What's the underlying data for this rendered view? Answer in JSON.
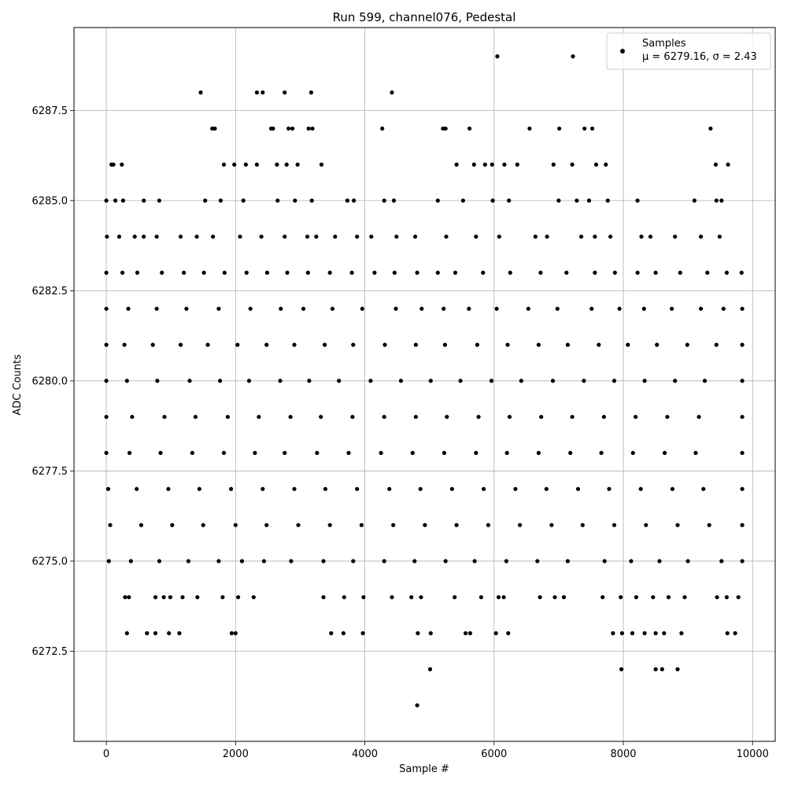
{
  "chart_data": {
    "type": "scatter",
    "title": "Run 599, channel076, Pedestal",
    "xlabel": "Sample #",
    "ylabel": "ADC Counts",
    "xlim": [
      -500,
      10350
    ],
    "ylim": [
      6270.0,
      6289.8
    ],
    "x_ticks": [
      0,
      2000,
      4000,
      6000,
      8000,
      10000
    ],
    "x_tick_labels": [
      "0",
      "2000",
      "4000",
      "6000",
      "8000",
      "10000"
    ],
    "y_ticks": [
      6272.5,
      6275.0,
      6277.5,
      6280.0,
      6282.5,
      6285.0,
      6287.5
    ],
    "y_tick_labels": [
      "6272.5",
      "6275.0",
      "6277.5",
      "6280.0",
      "6282.5",
      "6285.0",
      "6287.5"
    ],
    "grid": true,
    "legend": {
      "placement": "top-right",
      "label": "Samples",
      "stats": "μ = 6279.16, σ = 2.43"
    },
    "marker_color": "#000000",
    "series": [
      {
        "name": "Samples",
        "x": [
          1460,
          2330,
          2420,
          2760,
          3170,
          4420,
          6050,
          7220,
          1640,
          1680,
          2550,
          2580,
          2820,
          2880,
          3130,
          3190,
          4270,
          5210,
          5250,
          5620,
          6550,
          7010,
          7400,
          7520,
          9350,
          80,
          110,
          240,
          1820,
          1980,
          2160,
          2330,
          2640,
          2790,
          2960,
          3330,
          5420,
          5690,
          5860,
          5970,
          6160,
          6360,
          6920,
          7210,
          7580,
          7730,
          9430,
          9620,
          0,
          140,
          260,
          580,
          820,
          1530,
          1770,
          2120,
          2650,
          2920,
          3180,
          3730,
          3830,
          4300,
          4450,
          5130,
          5520,
          5980,
          6230,
          7000,
          7280,
          7470,
          7760,
          8220,
          9100,
          9440,
          9520,
          10,
          200,
          440,
          580,
          780,
          1150,
          1400,
          1650,
          2070,
          2400,
          2760,
          3110,
          3250,
          3540,
          3880,
          4100,
          4490,
          4780,
          5260,
          5720,
          6080,
          6640,
          6820,
          7350,
          7560,
          7800,
          8280,
          8420,
          8800,
          9200,
          9490,
          0,
          250,
          480,
          860,
          1200,
          1510,
          1830,
          2170,
          2490,
          2800,
          3120,
          3460,
          3800,
          4150,
          4460,
          4810,
          5130,
          5400,
          5830,
          6250,
          6720,
          7120,
          7560,
          7870,
          8220,
          8500,
          8880,
          9300,
          9600,
          9830,
          0,
          340,
          780,
          1240,
          1740,
          2230,
          2700,
          3050,
          3500,
          3960,
          4480,
          4880,
          5220,
          5610,
          6040,
          6530,
          6980,
          7510,
          7940,
          8320,
          8750,
          9200,
          9550,
          9840,
          0,
          280,
          720,
          1150,
          1570,
          2030,
          2480,
          2910,
          3380,
          3820,
          4310,
          4790,
          5240,
          5740,
          6210,
          6690,
          7140,
          7620,
          8070,
          8520,
          8990,
          9440,
          9840,
          0,
          320,
          790,
          1290,
          1760,
          2210,
          2690,
          3140,
          3600,
          4090,
          4560,
          5020,
          5480,
          5960,
          6420,
          6910,
          7390,
          7860,
          8330,
          8800,
          9260,
          9840,
          0,
          400,
          900,
          1380,
          1880,
          2360,
          2850,
          3320,
          3810,
          4300,
          4790,
          5270,
          5760,
          6240,
          6730,
          7210,
          7700,
          8190,
          8680,
          9170,
          9840,
          0,
          360,
          840,
          1330,
          1820,
          2300,
          2760,
          3260,
          3750,
          4250,
          4740,
          5230,
          5720,
          6200,
          6690,
          7180,
          7660,
          8150,
          8640,
          9120,
          9840,
          30,
          470,
          960,
          1440,
          1930,
          2420,
          2910,
          3390,
          3880,
          4380,
          4860,
          5350,
          5840,
          6330,
          6810,
          7300,
          7780,
          8270,
          8760,
          9240,
          9840,
          60,
          540,
          1020,
          1500,
          2000,
          2480,
          2970,
          3460,
          3950,
          4440,
          4930,
          5420,
          5910,
          6400,
          6890,
          7370,
          7860,
          8350,
          8840,
          9330,
          9840,
          40,
          380,
          820,
          1270,
          1740,
          2100,
          2440,
          2860,
          3360,
          3820,
          4300,
          4770,
          5250,
          5700,
          6190,
          6670,
          7140,
          7710,
          8120,
          8560,
          9000,
          9520,
          9840,
          290,
          350,
          760,
          890,
          990,
          1180,
          1410,
          1800,
          2040,
          2280,
          3360,
          3680,
          3980,
          4420,
          4720,
          4870,
          5390,
          5800,
          6070,
          6150,
          6710,
          6940,
          7080,
          7680,
          7960,
          8200,
          8460,
          8700,
          8950,
          9450,
          9600,
          9780,
          320,
          630,
          760,
          970,
          1130,
          1940,
          2000,
          3480,
          3670,
          3970,
          4820,
          5020,
          5560,
          5630,
          6030,
          6220,
          7840,
          7980,
          8140,
          8330,
          8500,
          8630,
          8900,
          9610,
          9730,
          5010,
          7970,
          8500,
          8600,
          8840,
          4810
        ],
        "y": [
          6288,
          6288,
          6288,
          6288,
          6288,
          6288,
          6289,
          6289,
          6287,
          6287,
          6287,
          6287,
          6287,
          6287,
          6287,
          6287,
          6287,
          6287,
          6287,
          6287,
          6287,
          6287,
          6287,
          6287,
          6287,
          6286,
          6286,
          6286,
          6286,
          6286,
          6286,
          6286,
          6286,
          6286,
          6286,
          6286,
          6286,
          6286,
          6286,
          6286,
          6286,
          6286,
          6286,
          6286,
          6286,
          6286,
          6286,
          6286,
          6285,
          6285,
          6285,
          6285,
          6285,
          6285,
          6285,
          6285,
          6285,
          6285,
          6285,
          6285,
          6285,
          6285,
          6285,
          6285,
          6285,
          6285,
          6285,
          6285,
          6285,
          6285,
          6285,
          6285,
          6285,
          6285,
          6285,
          6284,
          6284,
          6284,
          6284,
          6284,
          6284,
          6284,
          6284,
          6284,
          6284,
          6284,
          6284,
          6284,
          6284,
          6284,
          6284,
          6284,
          6284,
          6284,
          6284,
          6284,
          6284,
          6284,
          6284,
          6284,
          6284,
          6284,
          6284,
          6284,
          6284,
          6284,
          6283,
          6283,
          6283,
          6283,
          6283,
          6283,
          6283,
          6283,
          6283,
          6283,
          6283,
          6283,
          6283,
          6283,
          6283,
          6283,
          6283,
          6283,
          6283,
          6283,
          6283,
          6283,
          6283,
          6283,
          6283,
          6283,
          6283,
          6283,
          6283,
          6283,
          6282,
          6282,
          6282,
          6282,
          6282,
          6282,
          6282,
          6282,
          6282,
          6282,
          6282,
          6282,
          6282,
          6282,
          6282,
          6282,
          6282,
          6282,
          6282,
          6282,
          6282,
          6282,
          6282,
          6282,
          6281,
          6281,
          6281,
          6281,
          6281,
          6281,
          6281,
          6281,
          6281,
          6281,
          6281,
          6281,
          6281,
          6281,
          6281,
          6281,
          6281,
          6281,
          6281,
          6281,
          6281,
          6281,
          6281,
          6280,
          6280,
          6280,
          6280,
          6280,
          6280,
          6280,
          6280,
          6280,
          6280,
          6280,
          6280,
          6280,
          6280,
          6280,
          6280,
          6280,
          6280,
          6280,
          6280,
          6280,
          6280,
          6279,
          6279,
          6279,
          6279,
          6279,
          6279,
          6279,
          6279,
          6279,
          6279,
          6279,
          6279,
          6279,
          6279,
          6279,
          6279,
          6279,
          6279,
          6279,
          6279,
          6279,
          6278,
          6278,
          6278,
          6278,
          6278,
          6278,
          6278,
          6278,
          6278,
          6278,
          6278,
          6278,
          6278,
          6278,
          6278,
          6278,
          6278,
          6278,
          6278,
          6278,
          6278,
          6277,
          6277,
          6277,
          6277,
          6277,
          6277,
          6277,
          6277,
          6277,
          6277,
          6277,
          6277,
          6277,
          6277,
          6277,
          6277,
          6277,
          6277,
          6277,
          6277,
          6277,
          6276,
          6276,
          6276,
          6276,
          6276,
          6276,
          6276,
          6276,
          6276,
          6276,
          6276,
          6276,
          6276,
          6276,
          6276,
          6276,
          6276,
          6276,
          6276,
          6276,
          6276,
          6275,
          6275,
          6275,
          6275,
          6275,
          6275,
          6275,
          6275,
          6275,
          6275,
          6275,
          6275,
          6275,
          6275,
          6275,
          6275,
          6275,
          6275,
          6275,
          6275,
          6275,
          6275,
          6275,
          6274,
          6274,
          6274,
          6274,
          6274,
          6274,
          6274,
          6274,
          6274,
          6274,
          6274,
          6274,
          6274,
          6274,
          6274,
          6274,
          6274,
          6274,
          6274,
          6274,
          6274,
          6274,
          6274,
          6274,
          6274,
          6274,
          6274,
          6274,
          6274,
          6274,
          6274,
          6274,
          6273,
          6273,
          6273,
          6273,
          6273,
          6273,
          6273,
          6273,
          6273,
          6273,
          6273,
          6273,
          6273,
          6273,
          6273,
          6273,
          6273,
          6273,
          6273,
          6273,
          6273,
          6273,
          6273,
          6273,
          6273,
          6272,
          6272,
          6272,
          6272,
          6272,
          6271
        ]
      }
    ]
  }
}
